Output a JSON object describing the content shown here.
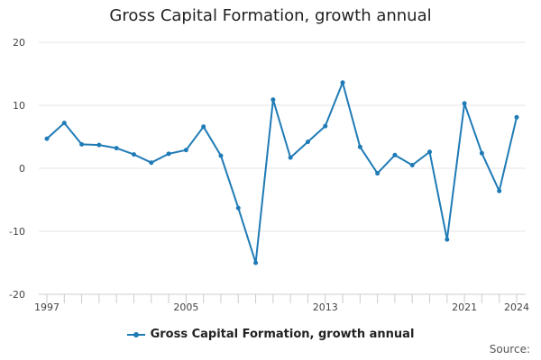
{
  "colors": {
    "series": "#1f7bb6",
    "grid": "#e6e6e6",
    "axis": "#cccccc"
  },
  "footer": {
    "source": "Source:"
  },
  "chart_data": {
    "type": "line",
    "title": "Gross Capital Formation, growth annual",
    "xlabel": "",
    "ylabel": "",
    "x": [
      1997,
      1998,
      1999,
      2000,
      2001,
      2002,
      2003,
      2004,
      2005,
      2006,
      2007,
      2008,
      2009,
      2010,
      2011,
      2012,
      2013,
      2014,
      2015,
      2016,
      2017,
      2018,
      2019,
      2020,
      2021,
      2022,
      2023,
      2024
    ],
    "x_tick_labels": [
      "1997",
      "2005",
      "2013",
      "2021",
      "2024"
    ],
    "x_tick_values": [
      1997,
      2005,
      2013,
      2021,
      2024
    ],
    "ylim": [
      -20,
      20
    ],
    "y_ticks": [
      20,
      10,
      0,
      -10,
      -20
    ],
    "grid": true,
    "legend_position": "bottom",
    "series": [
      {
        "name": "Gross Capital Formation, growth annual",
        "values": [
          4.7,
          7.2,
          3.8,
          3.7,
          3.2,
          2.2,
          0.9,
          2.3,
          2.9,
          6.6,
          2.0,
          -6.3,
          -15.0,
          10.9,
          1.7,
          4.2,
          6.7,
          13.6,
          3.4,
          -0.8,
          2.1,
          0.5,
          2.6,
          -11.3,
          10.3,
          2.4,
          -3.6,
          8.1
        ]
      }
    ]
  }
}
